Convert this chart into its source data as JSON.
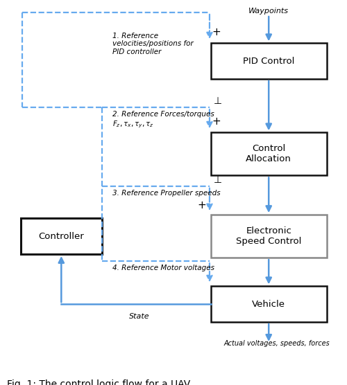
{
  "fig_width": 5.0,
  "fig_height": 5.56,
  "dpi": 100,
  "bg_color": "#ffffff",
  "arrow_blue": "#5599dd",
  "dashed_blue": "#66aaee",
  "box_edge_dark": "#111111",
  "box_edge_gray": "#888888",
  "waypoints_text": "Waypoints",
  "actual_text": "Actual voltages, speeds, forces",
  "state_text": "State",
  "caption": "Fig. 1: The control logic flow for a UAV"
}
